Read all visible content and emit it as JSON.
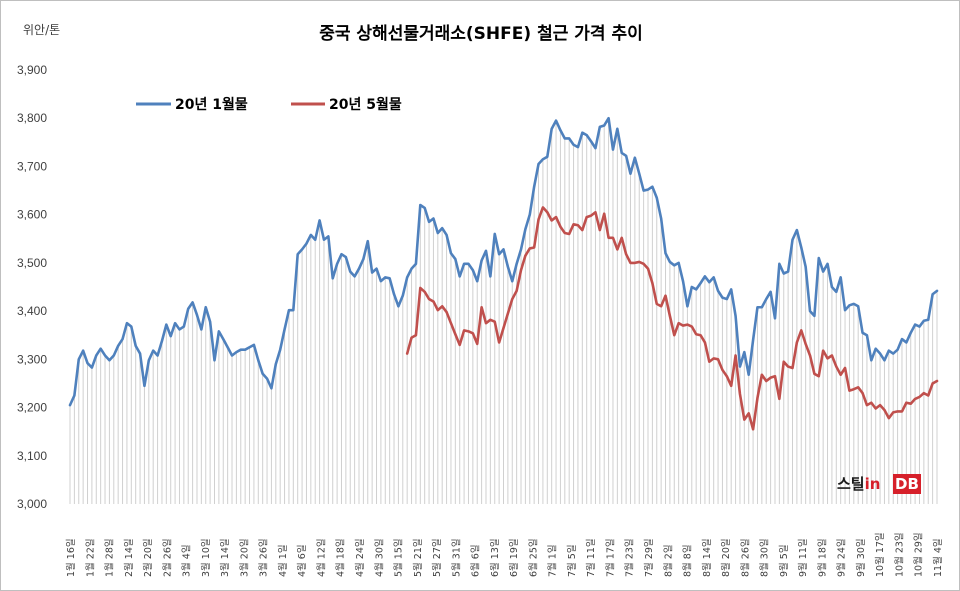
{
  "chart_data": {
    "type": "line",
    "title": "중국 상해선물거래소(SHFE)  철근 가격 추이",
    "unit_label": "위안/톤",
    "ylim": [
      3000,
      3900
    ],
    "yticks": [
      "3,000",
      "3,100",
      "3,200",
      "3,300",
      "3,400",
      "3,500",
      "3,600",
      "3,700",
      "3,800",
      "3,900"
    ],
    "ytick_values": [
      3000,
      3100,
      3200,
      3300,
      3400,
      3500,
      3600,
      3700,
      3800,
      3900
    ],
    "grid": false,
    "legend_position": "top-left",
    "x_tick_labels": [
      "1월 16일",
      "1월 22일",
      "1월 28일",
      "2월 14일",
      "2월 20일",
      "2월 26일",
      "3월 4일",
      "3월 10일",
      "3월 14일",
      "3월 20일",
      "3월 26일",
      "4월 1일",
      "4월 6일",
      "4월 12일",
      "4월 18일",
      "4월 24일",
      "4월 30일",
      "5월 15일",
      "5월 21일",
      "5월 27일",
      "5월 31일",
      "6월 6일",
      "6월 13일",
      "6월 19일",
      "6월 25일",
      "7월 1일",
      "7월 5일",
      "7월 11일",
      "7월 17일",
      "7월 23일",
      "7월 29일",
      "8월 2일",
      "8월 8일",
      "8월 14일",
      "8월 20일",
      "8월 26일",
      "8월 30일",
      "9월 5일",
      "9월 11일",
      "9월 18일",
      "9월 24일",
      "9월 30일",
      "10월 17일",
      "10월 23일",
      "10월 29일",
      "11월 4일"
    ],
    "series": [
      {
        "name": "20년 1월물",
        "color": "#4F81BD",
        "values": [
          3205,
          3225,
          3300,
          3318,
          3292,
          3283,
          3308,
          3322,
          3308,
          3298,
          3308,
          3328,
          3342,
          3375,
          3368,
          3328,
          3312,
          3245,
          3298,
          3318,
          3308,
          3338,
          3372,
          3348,
          3375,
          3362,
          3368,
          3405,
          3418,
          3392,
          3362,
          3408,
          3378,
          3298,
          3358,
          3342,
          3325,
          3308,
          3315,
          3320,
          3320,
          3325,
          3330,
          3298,
          3270,
          3260,
          3240,
          3290,
          3320,
          3362,
          3402,
          3402,
          3518,
          3528,
          3540,
          3558,
          3548,
          3588,
          3548,
          3555,
          3468,
          3498,
          3518,
          3512,
          3482,
          3472,
          3488,
          3508,
          3545,
          3480,
          3488,
          3462,
          3470,
          3468,
          3435,
          3410,
          3432,
          3470,
          3488,
          3498,
          3620,
          3614,
          3585,
          3592,
          3562,
          3572,
          3558,
          3520,
          3508,
          3472,
          3498,
          3498,
          3485,
          3462,
          3505,
          3525,
          3472,
          3560,
          3518,
          3528,
          3492,
          3462,
          3498,
          3528,
          3570,
          3600,
          3658,
          3705,
          3715,
          3720,
          3778,
          3795,
          3775,
          3758,
          3758,
          3745,
          3740,
          3770,
          3765,
          3752,
          3738,
          3782,
          3785,
          3800,
          3735,
          3778,
          3728,
          3722,
          3685,
          3718,
          3685,
          3650,
          3652,
          3658,
          3635,
          3592,
          3520,
          3502,
          3495,
          3500,
          3462,
          3410,
          3450,
          3445,
          3458,
          3472,
          3460,
          3470,
          3442,
          3428,
          3425,
          3445,
          3390,
          3285,
          3315,
          3268,
          3340,
          3408,
          3408,
          3425,
          3440,
          3385,
          3498,
          3478,
          3482,
          3548,
          3568,
          3532,
          3492,
          3400,
          3390,
          3510,
          3482,
          3498,
          3450,
          3440,
          3470,
          3402,
          3412,
          3415,
          3410,
          3355,
          3350,
          3298,
          3322,
          3312,
          3298,
          3318,
          3312,
          3320,
          3342,
          3335,
          3355,
          3372,
          3368,
          3380,
          3382,
          3435,
          3442
        ]
      },
      {
        "name": "20년 5월물",
        "color": "#C0504D",
        "values": [
          3312,
          3345,
          3350,
          3448,
          3440,
          3425,
          3420,
          3402,
          3410,
          3398,
          3375,
          3352,
          3330,
          3360,
          3358,
          3354,
          3332,
          3408,
          3375,
          3382,
          3378,
          3335,
          3365,
          3395,
          3425,
          3442,
          3485,
          3515,
          3530,
          3532,
          3590,
          3615,
          3605,
          3588,
          3595,
          3575,
          3562,
          3560,
          3580,
          3578,
          3568,
          3595,
          3598,
          3605,
          3568,
          3602,
          3552,
          3552,
          3528,
          3552,
          3518,
          3500,
          3500,
          3502,
          3498,
          3488,
          3458,
          3415,
          3410,
          3432,
          3390,
          3350,
          3375,
          3370,
          3372,
          3368,
          3352,
          3350,
          3335,
          3295,
          3302,
          3300,
          3278,
          3265,
          3245,
          3308,
          3228,
          3175,
          3188,
          3155,
          3220,
          3268,
          3255,
          3262,
          3265,
          3218,
          3295,
          3285,
          3282,
          3335,
          3360,
          3332,
          3308,
          3270,
          3265,
          3318,
          3302,
          3308,
          3285,
          3268,
          3282,
          3235,
          3238,
          3242,
          3230,
          3205,
          3210,
          3198,
          3205,
          3195,
          3178,
          3190,
          3192,
          3192,
          3210,
          3208,
          3218,
          3222,
          3230,
          3225,
          3250,
          3255
        ]
      }
    ]
  },
  "legend": {
    "series1_label": "20년 1월물",
    "series2_label": "20년 5월물"
  },
  "logo": {
    "text_part1": "스틸",
    "text_part2": "in",
    "text_part3": "DB"
  },
  "colors": {
    "series1": "#4F81BD",
    "series2": "#C0504D",
    "drop_line": "#d0d0d0",
    "logo_red": "#d6202a",
    "logo_black": "#1a1a1a"
  }
}
